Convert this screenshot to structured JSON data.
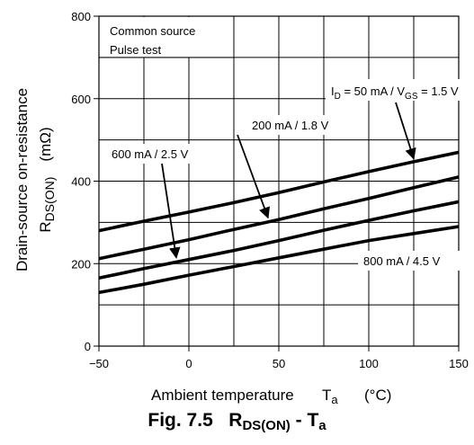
{
  "chart_data": {
    "type": "line",
    "x": [
      -50,
      -25,
      0,
      25,
      50,
      75,
      100,
      125,
      150
    ],
    "xlim": [
      -50,
      150
    ],
    "ylim": [
      0,
      800
    ],
    "xticks": [
      -50,
      0,
      50,
      100,
      150
    ],
    "yticks": [
      0,
      200,
      400,
      600,
      800
    ],
    "grid": true,
    "xlabel": "Ambient temperature",
    "xlabel_symbol": "T",
    "xlabel_symbol_sub": "a",
    "xlabel_unit": "(°C)",
    "ylabel_line1": "Drain-source on-resistance",
    "ylabel_symbol": "R",
    "ylabel_symbol_sub": "DS(ON)",
    "ylabel_unit": "(mΩ)",
    "conditions": [
      "Common source",
      "Pulse test"
    ],
    "series": [
      {
        "name": "I_D = 50 mA / V_GS = 1.5 V",
        "values": [
          280,
          303,
          325,
          348,
          372,
          398,
          423,
          447,
          470
        ]
      },
      {
        "name": "200 mA / 1.8 V",
        "values": [
          212,
          235,
          258,
          283,
          307,
          333,
          358,
          384,
          410
        ]
      },
      {
        "name": "600 mA / 2.5 V",
        "values": [
          165,
          188,
          210,
          232,
          256,
          281,
          305,
          328,
          350
        ]
      },
      {
        "name": "800 mA / 4.5 V",
        "values": [
          130,
          150,
          172,
          193,
          214,
          235,
          256,
          273,
          290
        ]
      }
    ],
    "annotations": [
      {
        "series": 0,
        "prefix": "I",
        "sub1": "D",
        "mid": " = 50 mA / V",
        "sub2": "GS",
        "suffix": " = 1.5 V",
        "arrow_to": [
          125,
          450
        ]
      },
      {
        "series": 1,
        "text": "200 mA / 1.8 V",
        "arrow_to": [
          44,
          307
        ]
      },
      {
        "series": 2,
        "text": "600 mA / 2.5 V",
        "arrow_to": [
          -7,
          210
        ]
      },
      {
        "series": 3,
        "text": "800 mA / 4.5 V",
        "arrow_to": null
      }
    ]
  },
  "caption": {
    "prefix": "Fig. 7.5",
    "r": "R",
    "r_sub": "DS(ON)",
    "dash": " - ",
    "t": "T",
    "t_sub": "a"
  }
}
